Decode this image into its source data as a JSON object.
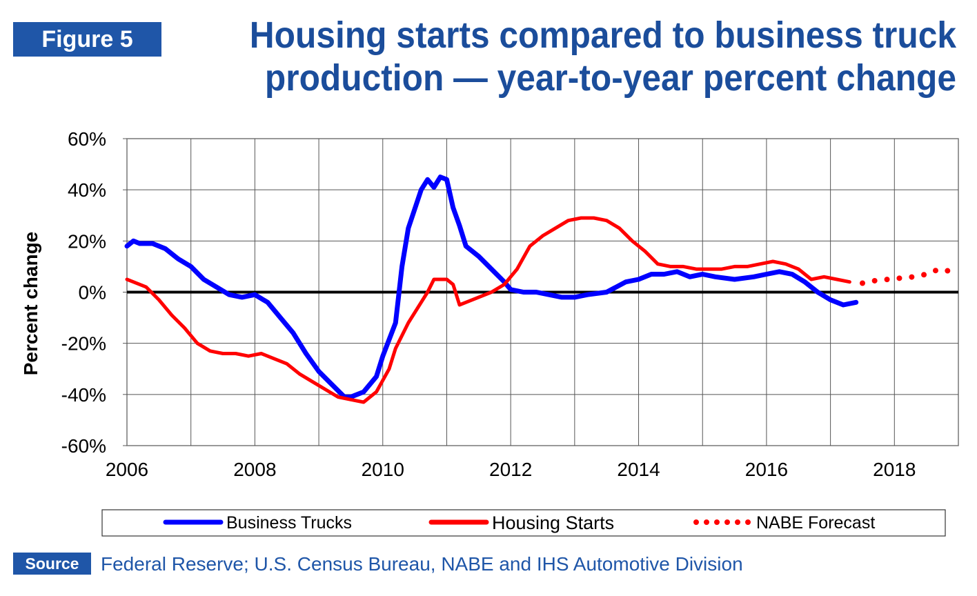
{
  "figure_label": "Figure 5",
  "title": "Housing starts compared to business truck production — year-to-year percent change",
  "source_label": "Source",
  "source_text": "Federal Reserve; U.S. Census Bureau, NABE and IHS Automotive Division",
  "colors": {
    "brand": "#1f56a8",
    "title": "#1b4d9b",
    "trucks": "#0000ff",
    "housing": "#ff0000",
    "forecast": "#ff0000"
  },
  "chart_data": {
    "type": "line",
    "title": "Housing starts compared to business truck production — year-to-year percent change",
    "xlabel": "",
    "ylabel": "Percent change",
    "xlim": [
      2006,
      2019
    ],
    "ylim": [
      -60,
      60
    ],
    "x_ticks": [
      "2006",
      "2008",
      "2010",
      "2012",
      "2014",
      "2016",
      "2018"
    ],
    "y_ticks": [
      "60%",
      "40%",
      "20%",
      "0%",
      "-20%",
      "-40%",
      "-60%"
    ],
    "grid": true,
    "legend_position": "bottom",
    "series": [
      {
        "name": "Business Trucks",
        "style": "solid",
        "x": [
          2006.0,
          2006.1,
          2006.2,
          2006.4,
          2006.6,
          2006.8,
          2007.0,
          2007.2,
          2007.4,
          2007.6,
          2007.8,
          2008.0,
          2008.2,
          2008.4,
          2008.6,
          2008.8,
          2009.0,
          2009.2,
          2009.4,
          2009.5,
          2009.7,
          2009.9,
          2010.0,
          2010.2,
          2010.3,
          2010.4,
          2010.6,
          2010.7,
          2010.8,
          2010.9,
          2011.0,
          2011.1,
          2011.2,
          2011.3,
          2011.5,
          2011.7,
          2011.9,
          2012.0,
          2012.2,
          2012.4,
          2012.6,
          2012.8,
          2013.0,
          2013.2,
          2013.5,
          2013.8,
          2014.0,
          2014.2,
          2014.4,
          2014.6,
          2014.8,
          2015.0,
          2015.2,
          2015.5,
          2015.8,
          2016.0,
          2016.2,
          2016.4,
          2016.6,
          2016.8,
          2017.0,
          2017.2,
          2017.4
        ],
        "values": [
          18,
          20,
          19,
          19,
          17,
          13,
          10,
          5,
          2,
          -1,
          -2,
          -1,
          -4,
          -10,
          -16,
          -24,
          -31,
          -36,
          -41,
          -41,
          -39,
          -33,
          -25,
          -12,
          10,
          25,
          40,
          44,
          41,
          45,
          44,
          33,
          26,
          18,
          14,
          9,
          4,
          1,
          0,
          0,
          -1,
          -2,
          -2,
          -1,
          0,
          4,
          5,
          7,
          7,
          8,
          6,
          7,
          6,
          5,
          6,
          7,
          8,
          7,
          4,
          0,
          -3,
          -5,
          -4
        ]
      },
      {
        "name": "Housing Starts",
        "style": "solid",
        "x": [
          2006.0,
          2006.1,
          2006.3,
          2006.5,
          2006.7,
          2006.9,
          2007.1,
          2007.3,
          2007.5,
          2007.7,
          2007.9,
          2008.1,
          2008.3,
          2008.5,
          2008.7,
          2008.9,
          2009.1,
          2009.3,
          2009.5,
          2009.7,
          2009.9,
          2010.1,
          2010.2,
          2010.4,
          2010.6,
          2010.7,
          2010.8,
          2011.0,
          2011.1,
          2011.2,
          2011.3,
          2011.5,
          2011.7,
          2011.9,
          2012.1,
          2012.3,
          2012.5,
          2012.7,
          2012.9,
          2013.1,
          2013.3,
          2013.5,
          2013.7,
          2013.9,
          2014.1,
          2014.3,
          2014.5,
          2014.7,
          2014.9,
          2015.1,
          2015.3,
          2015.5,
          2015.7,
          2015.9,
          2016.1,
          2016.3,
          2016.5,
          2016.7,
          2016.9,
          2017.1,
          2017.3
        ],
        "values": [
          5,
          4,
          2,
          -3,
          -9,
          -14,
          -20,
          -23,
          -24,
          -24,
          -25,
          -24,
          -26,
          -28,
          -32,
          -35,
          -38,
          -41,
          -42,
          -43,
          -39,
          -30,
          -22,
          -12,
          -4,
          0,
          5,
          5,
          3,
          -5,
          -4,
          -2,
          0,
          3,
          9,
          18,
          22,
          25,
          28,
          29,
          29,
          28,
          25,
          20,
          16,
          11,
          10,
          10,
          9,
          9,
          9,
          10,
          10,
          11,
          12,
          11,
          9,
          5,
          6,
          5,
          4
        ]
      },
      {
        "name": "NABE Forecast",
        "style": "dotted",
        "x": [
          2017.5,
          2017.7,
          2017.9,
          2018.1,
          2018.3,
          2018.5,
          2018.7,
          2018.9
        ],
        "values": [
          3.5,
          4.5,
          5,
          5.5,
          6,
          7,
          9,
          8
        ]
      }
    ]
  }
}
